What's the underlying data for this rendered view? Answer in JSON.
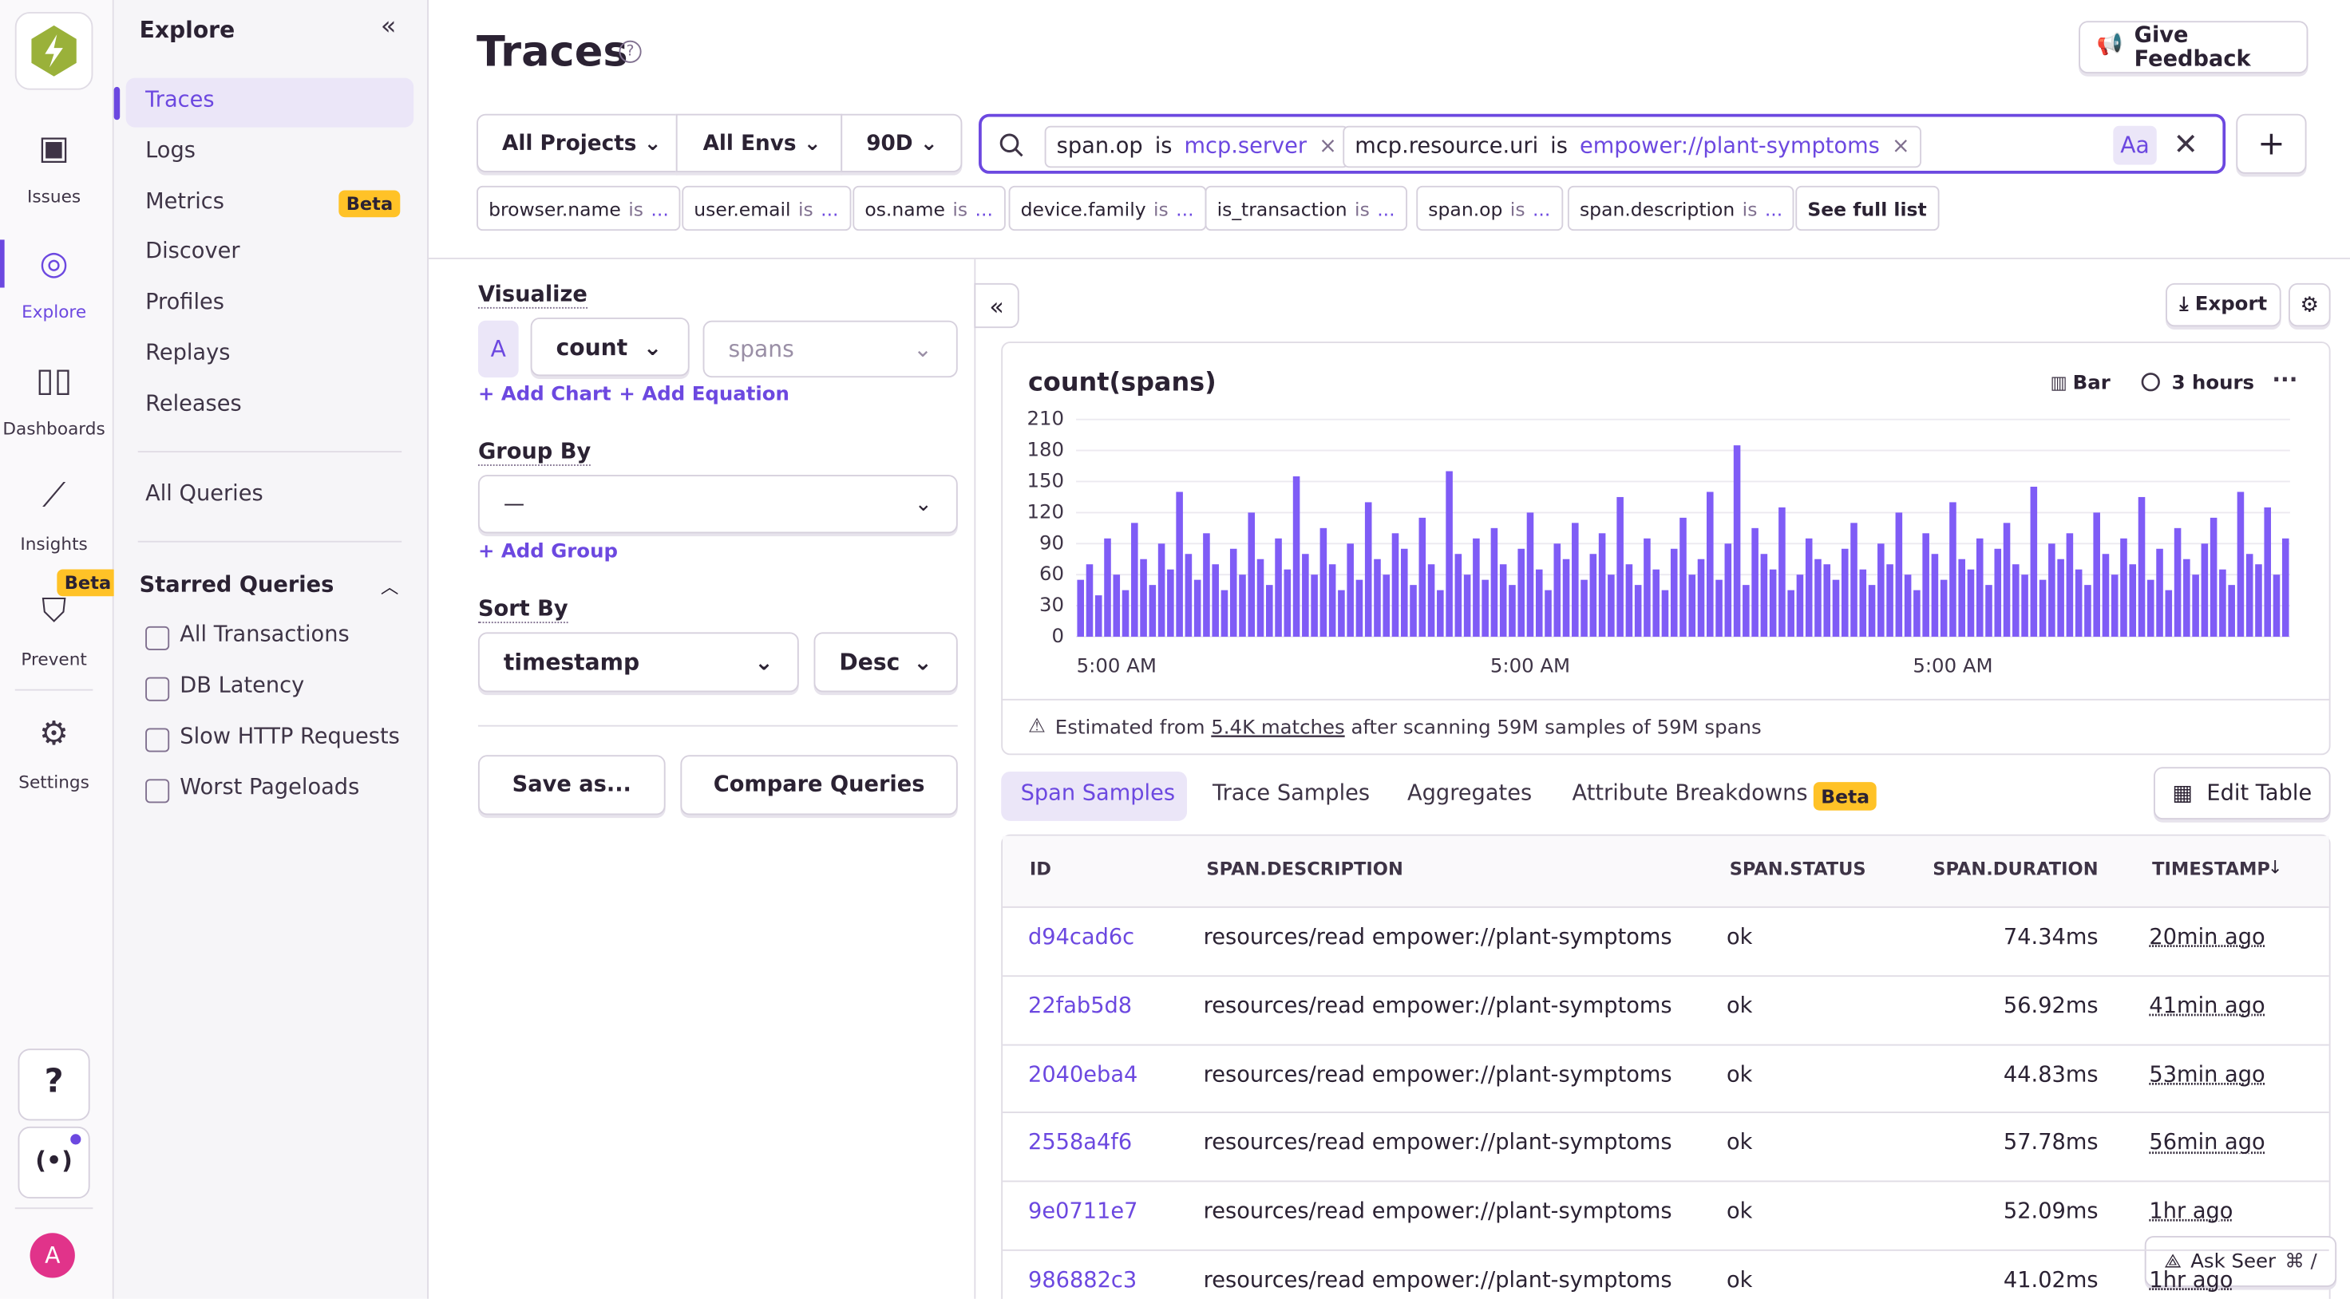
{
  "rail": {
    "nav": [
      "Issues",
      "Explore",
      "Dashboards",
      "Insights",
      "Prevent",
      "Settings"
    ],
    "prevent_badge": "Beta",
    "avatar": "A"
  },
  "explore_menu": {
    "title": "Explore",
    "items": [
      "Traces",
      "Logs",
      "Metrics",
      "Discover",
      "Profiles",
      "Replays",
      "Releases"
    ],
    "metrics_badge": "Beta",
    "all_queries": "All Queries",
    "starred_title": "Starred Queries",
    "starred": [
      "All Transactions",
      "DB Latency",
      "Slow HTTP Requests",
      "Worst Pageloads"
    ]
  },
  "header": {
    "title": "Traces",
    "feedback": "Give Feedback"
  },
  "filters": {
    "projects": "All Projects",
    "envs": "All Envs",
    "period": "90D",
    "tokens": [
      {
        "key": "span.op",
        "op": "is",
        "value": "mcp.server"
      },
      {
        "key": "mcp.resource.uri",
        "op": "is",
        "value": "empower://plant-symptoms"
      }
    ],
    "case": "Aa",
    "suggestions": [
      {
        "key": "browser.name",
        "op": "is",
        "value": "..."
      },
      {
        "key": "user.email",
        "op": "is",
        "value": "..."
      },
      {
        "key": "os.name",
        "op": "is",
        "value": "..."
      },
      {
        "key": "device.family",
        "op": "is",
        "value": "..."
      },
      {
        "key": "is_transaction",
        "op": "is",
        "value": "..."
      },
      {
        "key": "span.op",
        "op": "is",
        "value": "..."
      },
      {
        "key": "span.description",
        "op": "is",
        "value": "..."
      }
    ],
    "see_full_list": "See full list"
  },
  "controls": {
    "visualize": "Visualize",
    "letter": "A",
    "aggregate": "count",
    "field": "spans",
    "add_chart": "Add Chart",
    "add_equation": "Add Equation",
    "group_by": "Group By",
    "group_value": "—",
    "add_group": "Add Group",
    "sort_by": "Sort By",
    "sort_field": "timestamp",
    "sort_order": "Desc",
    "save_as": "Save as...",
    "compare": "Compare Queries",
    "export": "Export"
  },
  "chart_data": {
    "type": "bar",
    "title": "count(spans)",
    "chart_type_label": "Bar",
    "interval": "3 hours",
    "color": "#7f5cf6",
    "ylim": [
      0,
      210
    ],
    "yticks": [
      0,
      30,
      60,
      90,
      120,
      150,
      180,
      210
    ],
    "grid": true,
    "categories": [
      null,
      null,
      null,
      null,
      "5:00 AM",
      null,
      null,
      null,
      null,
      null,
      null,
      null,
      null,
      null,
      null,
      null,
      null,
      null,
      null,
      null,
      null,
      null,
      null,
      null,
      null,
      null,
      null,
      null,
      null,
      null,
      null,
      null,
      null,
      null,
      null,
      null,
      null,
      null,
      null,
      null,
      null,
      null,
      null,
      null,
      null,
      null,
      null,
      null,
      null,
      null,
      "5:00 AM",
      null,
      null,
      null,
      null,
      null,
      null,
      null,
      null,
      null,
      null,
      null,
      null,
      null,
      null,
      null,
      null,
      null,
      null,
      null,
      null,
      null,
      null,
      null,
      null,
      null,
      null,
      null,
      null,
      null,
      null,
      null,
      null,
      null,
      null,
      null,
      null,
      null,
      null,
      null,
      null,
      null,
      null,
      null,
      null,
      null,
      null,
      "5:00 AM",
      null,
      null,
      null,
      null,
      null,
      null,
      null,
      null,
      null,
      null,
      null,
      null,
      null,
      null,
      null,
      null,
      null,
      null,
      null,
      null,
      null,
      null,
      null,
      null,
      null,
      null,
      null,
      null,
      null,
      null,
      null,
      null,
      null,
      null,
      null,
      null,
      null
    ],
    "values": [
      55,
      70,
      40,
      95,
      60,
      45,
      110,
      75,
      50,
      90,
      65,
      140,
      80,
      55,
      100,
      70,
      45,
      85,
      60,
      120,
      75,
      50,
      95,
      65,
      155,
      80,
      60,
      105,
      70,
      45,
      90,
      55,
      130,
      75,
      60,
      100,
      85,
      50,
      115,
      70,
      45,
      160,
      80,
      60,
      95,
      55,
      105,
      70,
      50,
      85,
      120,
      65,
      45,
      90,
      75,
      110,
      55,
      80,
      100,
      60,
      135,
      70,
      50,
      95,
      65,
      45,
      85,
      115,
      60,
      75,
      140,
      55,
      90,
      185,
      50,
      105,
      80,
      65,
      125,
      45,
      60,
      95,
      75,
      70,
      55,
      85,
      110,
      65,
      50,
      90,
      70,
      120,
      60,
      45,
      100,
      80,
      55,
      130,
      75,
      65,
      95,
      50,
      85,
      110,
      70,
      60,
      145,
      55,
      90,
      75,
      100,
      65,
      50,
      120,
      80,
      60,
      95,
      70,
      135,
      55,
      85,
      45,
      105,
      75,
      60,
      90,
      115,
      65,
      50,
      140,
      80,
      70,
      125,
      60,
      95
    ],
    "note_prefix": "Estimated from",
    "note_link": "5.4K matches",
    "note_suffix": "after scanning 59M samples of 59M spans"
  },
  "tabs": {
    "items": [
      "Span Samples",
      "Trace Samples",
      "Aggregates",
      "Attribute Breakdowns"
    ],
    "badge": "Beta",
    "edit_table": "Edit Table"
  },
  "table": {
    "columns": [
      "ID",
      "SPAN.DESCRIPTION",
      "SPAN.STATUS",
      "SPAN.DURATION",
      "TIMESTAMP"
    ],
    "rows": [
      [
        "d94cad6c",
        "resources/read empower://plant-symptoms",
        "ok",
        "74.34ms",
        "20min ago"
      ],
      [
        "22fab5d8",
        "resources/read empower://plant-symptoms",
        "ok",
        "56.92ms",
        "41min ago"
      ],
      [
        "2040eba4",
        "resources/read empower://plant-symptoms",
        "ok",
        "44.83ms",
        "53min ago"
      ],
      [
        "2558a4f6",
        "resources/read empower://plant-symptoms",
        "ok",
        "57.78ms",
        "56min ago"
      ],
      [
        "9e0711e7",
        "resources/read empower://plant-symptoms",
        "ok",
        "52.09ms",
        "1hr ago"
      ],
      [
        "986882c3",
        "resources/read empower://plant-symptoms",
        "ok",
        "41.02ms",
        "1hr ago"
      ]
    ]
  },
  "seer": {
    "label": "Ask Seer",
    "shortcut": "⌘ /"
  }
}
